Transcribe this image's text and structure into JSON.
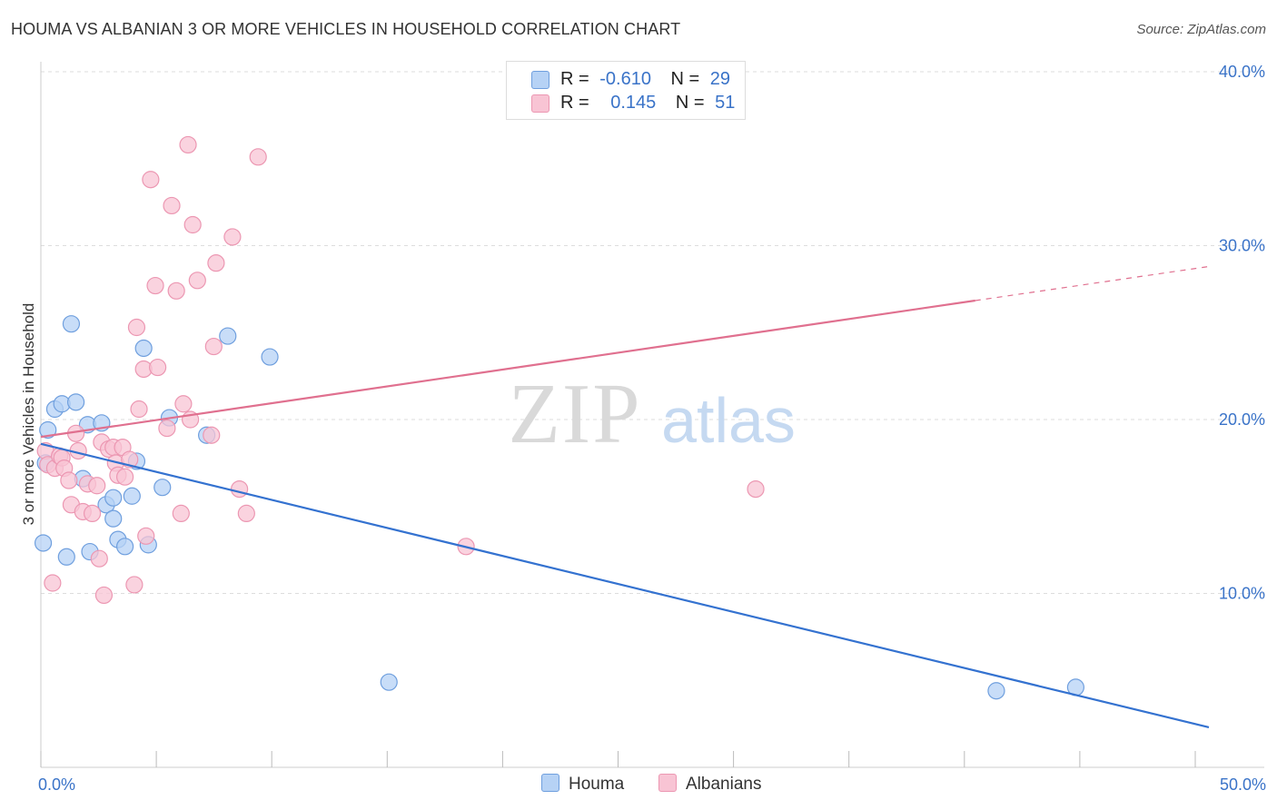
{
  "title": "HOUMA VS ALBANIAN 3 OR MORE VEHICLES IN HOUSEHOLD CORRELATION CHART",
  "source": "Source: ZipAtlas.com",
  "watermark": {
    "zip": "ZIP",
    "atlas": "atlas"
  },
  "legend": {
    "houma": {
      "r_label": "R =",
      "r_value": "-0.610",
      "n_label": "N =",
      "n_value": "29"
    },
    "albanians": {
      "r_label": "R =",
      "r_value": "0.145",
      "n_label": "N =",
      "n_value": "51"
    }
  },
  "colors": {
    "houma_fill": "#b6d2f5",
    "houma_stroke": "#6f9fde",
    "houma_line": "#3472d0",
    "albanian_fill": "#f8c4d4",
    "albanian_stroke": "#ec97b2",
    "albanian_line": "#e0708f",
    "tick_label": "#3a73c8",
    "grid": "#dddddd"
  },
  "chart_data": {
    "type": "scatter",
    "title": "HOUMA VS ALBANIAN 3 OR MORE VEHICLES IN HOUSEHOLD CORRELATION CHART",
    "xlabel": "",
    "ylabel": "3 or more Vehicles in Household",
    "xlim": [
      0,
      50
    ],
    "ylim": [
      0,
      42
    ],
    "x_tick_labels": [
      {
        "value": 0,
        "label": "0.0%"
      },
      {
        "value": 50,
        "label": "50.0%"
      }
    ],
    "y_tick_labels": [
      {
        "value": 10,
        "label": "10.0%"
      },
      {
        "value": 20,
        "label": "20.0%"
      },
      {
        "value": 30,
        "label": "30.0%"
      },
      {
        "value": 40,
        "label": "40.0%"
      }
    ],
    "x_minor_ticks": [
      0,
      5,
      10,
      15,
      20,
      25,
      30,
      35,
      40,
      45,
      50
    ],
    "legend_position": "top-center",
    "series": [
      {
        "name": "Houma",
        "points": [
          [
            0.1,
            12.9
          ],
          [
            0.3,
            19.4
          ],
          [
            0.6,
            20.6
          ],
          [
            0.9,
            20.9
          ],
          [
            1.1,
            12.1
          ],
          [
            1.3,
            25.5
          ],
          [
            1.5,
            21.0
          ],
          [
            1.8,
            16.6
          ],
          [
            2.0,
            19.7
          ],
          [
            2.1,
            12.4
          ],
          [
            2.6,
            19.8
          ],
          [
            2.8,
            15.1
          ],
          [
            3.1,
            15.5
          ],
          [
            3.1,
            14.3
          ],
          [
            3.3,
            13.1
          ],
          [
            3.6,
            12.7
          ],
          [
            3.9,
            15.6
          ],
          [
            4.1,
            17.6
          ],
          [
            4.4,
            24.1
          ],
          [
            4.6,
            12.8
          ],
          [
            5.2,
            16.1
          ],
          [
            5.5,
            20.1
          ],
          [
            7.1,
            19.1
          ],
          [
            8.0,
            24.8
          ],
          [
            9.8,
            23.6
          ],
          [
            14.9,
            4.9
          ],
          [
            40.9,
            4.4
          ],
          [
            44.3,
            4.6
          ],
          [
            0.2,
            17.5
          ]
        ],
        "trend": {
          "x": [
            0,
            50
          ],
          "y": [
            18.6,
            2.3
          ],
          "dashed_from": null
        }
      },
      {
        "name": "Albanians",
        "points": [
          [
            0.2,
            18.2
          ],
          [
            0.3,
            17.4
          ],
          [
            0.5,
            10.6
          ],
          [
            0.6,
            17.2
          ],
          [
            0.8,
            17.9
          ],
          [
            0.9,
            17.8
          ],
          [
            1.0,
            17.2
          ],
          [
            1.2,
            16.5
          ],
          [
            1.3,
            15.1
          ],
          [
            1.5,
            19.2
          ],
          [
            1.6,
            18.2
          ],
          [
            1.8,
            14.7
          ],
          [
            2.0,
            16.3
          ],
          [
            2.2,
            14.6
          ],
          [
            2.4,
            16.2
          ],
          [
            2.5,
            12.0
          ],
          [
            2.6,
            18.7
          ],
          [
            2.7,
            9.9
          ],
          [
            2.9,
            18.3
          ],
          [
            3.1,
            18.4
          ],
          [
            3.2,
            17.5
          ],
          [
            3.3,
            16.8
          ],
          [
            3.5,
            18.4
          ],
          [
            3.6,
            16.7
          ],
          [
            3.8,
            17.7
          ],
          [
            4.0,
            10.5
          ],
          [
            4.1,
            25.3
          ],
          [
            4.2,
            20.6
          ],
          [
            4.4,
            22.9
          ],
          [
            4.5,
            13.3
          ],
          [
            4.7,
            33.8
          ],
          [
            4.9,
            27.7
          ],
          [
            5.0,
            23.0
          ],
          [
            5.4,
            19.5
          ],
          [
            5.6,
            32.3
          ],
          [
            5.8,
            27.4
          ],
          [
            6.0,
            14.6
          ],
          [
            6.1,
            20.9
          ],
          [
            6.3,
            35.8
          ],
          [
            6.4,
            20.0
          ],
          [
            6.5,
            31.2
          ],
          [
            6.7,
            28.0
          ],
          [
            7.3,
            19.1
          ],
          [
            7.4,
            24.2
          ],
          [
            7.5,
            29.0
          ],
          [
            8.2,
            30.5
          ],
          [
            8.5,
            16.0
          ],
          [
            8.8,
            14.6
          ],
          [
            9.3,
            35.1
          ],
          [
            18.2,
            12.7
          ],
          [
            30.6,
            16.0
          ]
        ],
        "trend": {
          "x": [
            0,
            50
          ],
          "y": [
            19.0,
            28.8
          ],
          "dashed_from": 40
        }
      }
    ]
  },
  "bottom_legend": [
    {
      "key": "houma",
      "label": "Houma"
    },
    {
      "key": "albanians",
      "label": "Albanians"
    }
  ]
}
